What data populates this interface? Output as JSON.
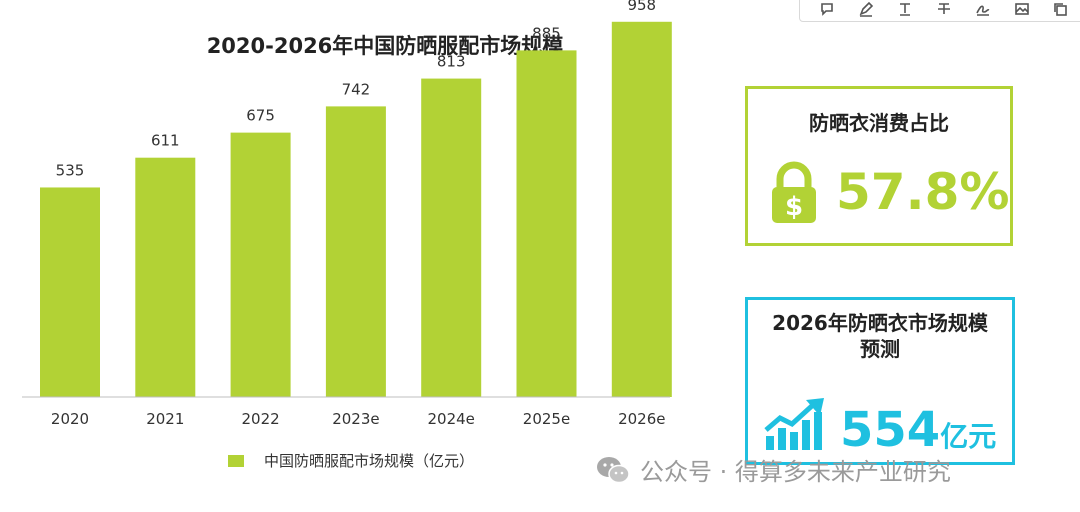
{
  "chart_data": {
    "type": "bar",
    "title": "2020-2026年中国防晒服配市场规模",
    "categories": [
      "2020",
      "2021",
      "2022",
      "2023e",
      "2024e",
      "2025e",
      "2026e"
    ],
    "series": [
      {
        "name": "中国防晒服配市场规模（亿元）",
        "values": [
          535,
          611,
          675,
          742,
          813,
          885,
          958
        ]
      }
    ],
    "ylim": [
      0,
      1200
    ],
    "grid": false,
    "legend_position": "bottom",
    "bar_color": "#b2d235"
  },
  "share_card": {
    "title": "防晒衣消费占比",
    "value": "57.8%",
    "icon": "lock-dollar-icon",
    "accent": "#b2d235"
  },
  "forecast_card": {
    "title_line1": "2026年防晒衣市场规模",
    "title_line2": "预测",
    "value": "554",
    "unit": "亿元",
    "icon": "growth-chart-icon",
    "accent": "#1fc0e0"
  },
  "watermark": {
    "text": "公众号 · 得算多未来产业研究",
    "icon": "wechat-icon"
  },
  "toolbar": {
    "tools": [
      "comment-icon",
      "highlight-icon",
      "text-icon",
      "strikethrough-icon",
      "sign-icon",
      "image-icon",
      "copy-icon"
    ]
  }
}
